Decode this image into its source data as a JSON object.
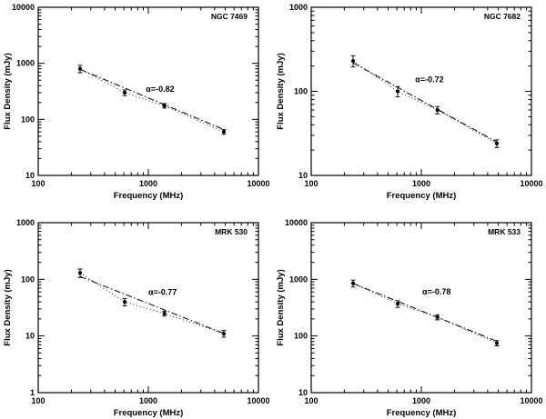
{
  "figure": {
    "background": "#ffffff",
    "ink_color": "#000000",
    "xlabel": "Frequency (MHz)",
    "ylabel": "Flux Density (mJy)"
  },
  "chart_data": [
    {
      "type": "scatter",
      "title": "NGC 7469",
      "alpha_label": "α=-0.82",
      "xlabel": "Frequency (MHz)",
      "ylabel": "Flux Density (mJy)",
      "xlim": [
        100,
        10000
      ],
      "ylim": [
        10,
        10000
      ],
      "xticks": [
        100,
        1000,
        10000
      ],
      "yticks": [
        10,
        100,
        1000,
        10000
      ],
      "grid": false,
      "x": [
        240,
        610,
        1400,
        4850
      ],
      "y": [
        800,
        300,
        175,
        60
      ],
      "yerr": [
        120,
        35,
        16,
        6
      ],
      "fit_line": {
        "x": [
          240,
          4850
        ],
        "y": [
          780,
          66
        ]
      },
      "annotation": {
        "x": 950,
        "y": 310
      }
    },
    {
      "type": "scatter",
      "title": "NGC 7682",
      "alpha_label": "α=-0.72",
      "xlabel": "Frequency (MHz)",
      "ylabel": "Flux Density (mJy)",
      "xlim": [
        100,
        10000
      ],
      "ylim": [
        10,
        1000
      ],
      "xticks": [
        100,
        1000,
        10000
      ],
      "yticks": [
        10,
        100,
        1000
      ],
      "grid": false,
      "x": [
        240,
        610,
        1400,
        4850
      ],
      "y": [
        230,
        100,
        60,
        24
      ],
      "yerr": [
        35,
        14,
        6,
        2.5
      ],
      "fit_line": {
        "x": [
          240,
          4850
        ],
        "y": [
          218,
          25
        ]
      },
      "annotation": {
        "x": 880,
        "y": 128
      }
    },
    {
      "type": "scatter",
      "title": "MRK 530",
      "alpha_label": "α=-0.77",
      "xlabel": "Frequency (MHz)",
      "ylabel": "Flux Density (mJy)",
      "xlim": [
        100,
        10000
      ],
      "ylim": [
        1,
        1000
      ],
      "xticks": [
        100,
        1000,
        10000
      ],
      "yticks": [
        1,
        10,
        100,
        1000
      ],
      "grid": false,
      "x": [
        240,
        610,
        1400,
        4850
      ],
      "y": [
        130,
        40,
        25,
        11
      ],
      "yerr": [
        22,
        6,
        2.5,
        1.5
      ],
      "fit_line": {
        "x": [
          240,
          4850
        ],
        "y": [
          112,
          11.1
        ]
      },
      "annotation": {
        "x": 1000,
        "y": 53
      }
    },
    {
      "type": "scatter",
      "title": "MRK 533",
      "alpha_label": "α=-0.78",
      "xlabel": "Frequency (MHz)",
      "ylabel": "Flux Density (mJy)",
      "xlim": [
        100,
        10000
      ],
      "ylim": [
        10,
        10000
      ],
      "xticks": [
        100,
        1000,
        10000
      ],
      "yticks": [
        10,
        100,
        1000,
        10000
      ],
      "grid": false,
      "x": [
        240,
        610,
        1400,
        4850
      ],
      "y": [
        850,
        370,
        215,
        75
      ],
      "yerr": [
        120,
        50,
        22,
        8
      ],
      "fit_line": {
        "x": [
          240,
          4850
        ],
        "y": [
          845,
          81
        ]
      },
      "annotation": {
        "x": 1020,
        "y": 540
      }
    }
  ]
}
